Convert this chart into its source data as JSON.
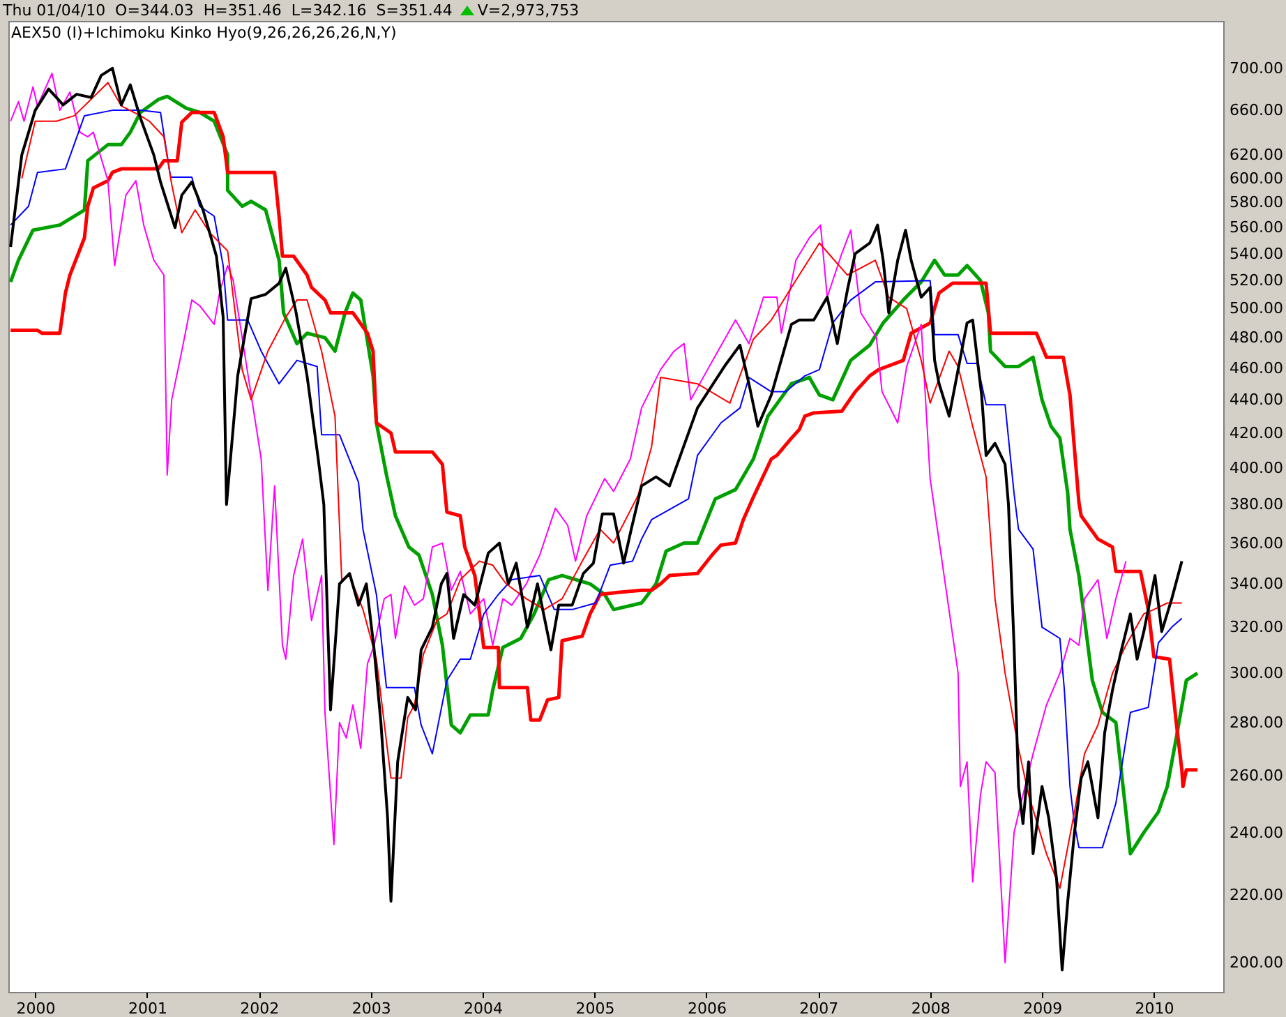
{
  "chart_data": {
    "type": "line",
    "title": "Thu 01/04/10  O=344.03  H=351.46  L=342.16  S=351.44",
    "annotations": [
      "V=2,973,753"
    ],
    "subtitle": "AEX50 (I)+Ichimoku Kinko Hyo(9,26,26,26,26,N,Y)",
    "log": "y",
    "grid": false,
    "xlim": [
      1999.76,
      2010.62
    ],
    "ylim": [
      192,
      748
    ],
    "xticks": [
      2000,
      2001,
      2002,
      2003,
      2004,
      2005,
      2006,
      2007,
      2008,
      2009,
      2010
    ],
    "yticks": [
      {
        "value": 700,
        "label": "700.00"
      },
      {
        "value": 660,
        "label": "660.00"
      },
      {
        "value": 620,
        "label": "620.00"
      },
      {
        "value": 600,
        "label": "600.00"
      },
      {
        "value": 580,
        "label": "580.00"
      },
      {
        "value": 560,
        "label": "560.00"
      },
      {
        "value": 540,
        "label": "540.00"
      },
      {
        "value": 520,
        "label": "520.00"
      },
      {
        "value": 500,
        "label": "500.00"
      },
      {
        "value": 480,
        "label": "480.00"
      },
      {
        "value": 460,
        "label": "460.00"
      },
      {
        "value": 440,
        "label": "440.00"
      },
      {
        "value": 420,
        "label": "420.00"
      },
      {
        "value": 400,
        "label": "400.00"
      },
      {
        "value": 380,
        "label": "380.00"
      },
      {
        "value": 360,
        "label": "360.00"
      },
      {
        "value": 340,
        "label": "340.00"
      },
      {
        "value": 320,
        "label": "320.00"
      },
      {
        "value": 300,
        "label": "300.00"
      },
      {
        "value": 280,
        "label": "280.00"
      },
      {
        "value": 260,
        "label": "260.00"
      },
      {
        "value": 240,
        "label": "240.00"
      },
      {
        "value": 220,
        "label": "220.00"
      },
      {
        "value": 200,
        "label": "200.00"
      }
    ],
    "series": [
      {
        "color": "#00a000",
        "x": [
          1999.78,
          1999.85,
          1999.98,
          2000.22,
          2000.44,
          2000.47,
          2000.65,
          2000.77,
          2000.85,
          2000.94,
          2001.1,
          2001.18,
          2001.35,
          2001.47,
          2001.6,
          2001.72,
          2001.72,
          2001.85,
          2001.93,
          2002.06,
          2002.18,
          2002.22,
          2002.34,
          2002.43,
          2002.59,
          2002.68,
          2002.77,
          2002.84,
          2002.91,
          2003.02,
          2003.05,
          2003.14,
          2003.22,
          2003.34,
          2003.43,
          2003.55,
          2003.64,
          2003.72,
          2003.8,
          2003.89,
          2004.05,
          2004.09,
          2004.18,
          2004.34,
          2004.46,
          2004.59,
          2004.71,
          2004.96,
          2005.09,
          2005.17,
          2005.42,
          2005.55,
          2005.64,
          2005.8,
          2005.92,
          2006.08,
          2006.26,
          2006.42,
          2006.55,
          2006.76,
          2006.92,
          2007.01,
          2007.13,
          2007.29,
          2007.46,
          2007.58,
          2007.76,
          2007.92,
          2008.04,
          2008.13,
          2008.25,
          2008.33,
          2008.45,
          2008.52,
          2008.54,
          2008.67,
          2008.79,
          2008.92,
          2009.0,
          2009.08,
          2009.16,
          2009.23,
          2009.25,
          2009.33,
          2009.41,
          2009.45,
          2009.54,
          2009.66,
          2009.75,
          2009.79,
          2009.91,
          2010.04,
          2010.12,
          2010.2,
          2010.29,
          2010.39
        ],
        "values": [
          519,
          535,
          558,
          562,
          574,
          615,
          629,
          629,
          640,
          658,
          670,
          673,
          662,
          658,
          650,
          620,
          590,
          577,
          581,
          574,
          535,
          497,
          476,
          483,
          480,
          471,
          497,
          511,
          506,
          455,
          426,
          396,
          374,
          358,
          354,
          335,
          312,
          279,
          276,
          283,
          283,
          293,
          311,
          315,
          326,
          342,
          344,
          340,
          335,
          328,
          331,
          340,
          356,
          360,
          360,
          383,
          388,
          405,
          430,
          450,
          454,
          443,
          440,
          465,
          475,
          490,
          506,
          519,
          535,
          524,
          524,
          531,
          520,
          497,
          471,
          461,
          461,
          467,
          440,
          424,
          417,
          386,
          367,
          344,
          312,
          297,
          284,
          280,
          247,
          233,
          240,
          247,
          256,
          274,
          297,
          300
        ]
      },
      {
        "color": "#ff0000",
        "x": [
          1999.78,
          2000.02,
          2000.06,
          2000.22,
          2000.27,
          2000.31,
          2000.44,
          2000.47,
          2000.52,
          2000.65,
          2000.69,
          2000.77,
          2001.1,
          2001.15,
          2001.27,
          2001.31,
          2001.4,
          2001.6,
          2001.68,
          2001.72,
          2002.14,
          2002.18,
          2002.21,
          2002.31,
          2002.43,
          2002.47,
          2002.59,
          2002.64,
          2002.84,
          2002.97,
          2003.02,
          2003.05,
          2003.18,
          2003.22,
          2003.55,
          2003.64,
          2003.68,
          2003.8,
          2003.84,
          2003.93,
          2004.01,
          2004.14,
          2004.15,
          2004.4,
          2004.43,
          2004.51,
          2004.58,
          2004.68,
          2004.71,
          2004.89,
          2004.96,
          2005.05,
          2005.21,
          2005.42,
          2005.51,
          2005.59,
          2005.67,
          2005.92,
          2006.05,
          2006.13,
          2006.26,
          2006.33,
          2006.42,
          2006.58,
          2006.63,
          2006.76,
          2006.83,
          2006.88,
          2006.96,
          2007.21,
          2007.33,
          2007.46,
          2007.54,
          2007.76,
          2007.83,
          2008.0,
          2008.08,
          2008.2,
          2008.5,
          2008.54,
          2008.95,
          2009.04,
          2009.19,
          2009.25,
          2009.33,
          2009.35,
          2009.5,
          2009.63,
          2009.66,
          2009.88,
          2009.95,
          2010.0,
          2010.14,
          2010.2,
          2010.25,
          2010.26,
          2010.29,
          2010.39
        ],
        "values": [
          485,
          485,
          483,
          483,
          511,
          524,
          552,
          577,
          592,
          598,
          605,
          608,
          608,
          615,
          615,
          649,
          658,
          658,
          636,
          605,
          605,
          569,
          538,
          538,
          524,
          515,
          506,
          497,
          497,
          483,
          471,
          426,
          420,
          409,
          409,
          402,
          376,
          374,
          358,
          344,
          311,
          311,
          294,
          294,
          281,
          281,
          289,
          290,
          314,
          316,
          326,
          335,
          336,
          337,
          337,
          340,
          344,
          345,
          354,
          359,
          360,
          372,
          384,
          405,
          407,
          417,
          422,
          430,
          432,
          433,
          445,
          455,
          459,
          465,
          483,
          490,
          511,
          518,
          518,
          483,
          483,
          467,
          467,
          443,
          381,
          374,
          362,
          358,
          346,
          346,
          328,
          307,
          306,
          280,
          262,
          256,
          262,
          262
        ]
      },
      {
        "color": "#ff00ff",
        "x": [
          1999.78,
          1999.85,
          1999.9,
          1999.98,
          2000.02,
          2000.15,
          2000.22,
          2000.31,
          2000.4,
          2000.47,
          2000.52,
          2000.65,
          2000.71,
          2000.81,
          2000.9,
          2000.97,
          2001.06,
          2001.15,
          2001.18,
          2001.22,
          2001.31,
          2001.4,
          2001.47,
          2001.6,
          2001.65,
          2001.72,
          2001.77,
          2002.02,
          2002.08,
          2002.14,
          2002.21,
          2002.24,
          2002.31,
          2002.39,
          2002.47,
          2002.56,
          2002.59,
          2002.67,
          2002.72,
          2002.78,
          2002.84,
          2002.91,
          2002.97,
          2003.03,
          2003.12,
          2003.18,
          2003.22,
          2003.3,
          2003.39,
          2003.47,
          2003.55,
          2003.64,
          2003.72,
          2003.8,
          2003.89,
          2004.01,
          2004.09,
          2004.18,
          2004.26,
          2004.39,
          2004.51,
          2004.65,
          2004.76,
          2004.83,
          2004.93,
          2005.09,
          2005.17,
          2005.32,
          2005.42,
          2005.59,
          2005.71,
          2005.8,
          2005.86,
          2006.01,
          2006.26,
          2006.38,
          2006.51,
          2006.63,
          2006.67,
          2006.8,
          2006.92,
          2007.02,
          2007.08,
          2007.21,
          2007.29,
          2007.38,
          2007.52,
          2007.57,
          2007.71,
          2007.79,
          2007.92,
          2008.0,
          2008.25,
          2008.27,
          2008.33,
          2008.38,
          2008.45,
          2008.5,
          2008.58,
          2008.67,
          2008.75,
          2008.83,
          2008.92,
          2009.04,
          2009.16,
          2009.25,
          2009.33,
          2009.38,
          2009.5,
          2009.58,
          2009.66,
          2009.75
        ],
        "values": [
          650,
          668,
          650,
          682,
          664,
          695,
          660,
          677,
          640,
          636,
          640,
          598,
          531,
          586,
          598,
          562,
          535,
          524,
          396,
          440,
          471,
          506,
          502,
          489,
          512,
          531,
          520,
          405,
          337,
          390,
          312,
          306,
          344,
          362,
          323,
          344,
          284,
          236,
          280,
          274,
          287,
          270,
          304,
          312,
          333,
          335,
          315,
          339,
          330,
          333,
          358,
          360,
          337,
          346,
          326,
          333,
          312,
          333,
          330,
          340,
          354,
          378,
          369,
          351,
          374,
          394,
          387,
          405,
          435,
          459,
          471,
          476,
          440,
          459,
          492,
          476,
          508,
          508,
          483,
          535,
          552,
          562,
          508,
          540,
          558,
          497,
          480,
          445,
          426,
          461,
          489,
          394,
          300,
          256,
          265,
          224,
          253,
          265,
          261,
          200,
          240,
          253,
          268,
          287,
          300,
          315,
          312,
          333,
          342,
          315,
          333,
          351
        ]
      },
      {
        "color": "#0000ff",
        "x": [
          1999.78,
          1999.94,
          2000.02,
          2000.27,
          2000.44,
          2000.69,
          2000.94,
          2001.12,
          2001.21,
          2001.4,
          2001.47,
          2001.6,
          2001.68,
          2001.72,
          2001.9,
          2002.02,
          2002.18,
          2002.34,
          2002.52,
          2002.56,
          2002.72,
          2002.89,
          2002.93,
          2003.05,
          2003.14,
          2003.39,
          2003.45,
          2003.55,
          2003.68,
          2003.8,
          2003.89,
          2004.01,
          2004.14,
          2004.26,
          2004.51,
          2004.64,
          2004.8,
          2005.01,
          2005.14,
          2005.34,
          2005.42,
          2005.51,
          2005.84,
          2005.92,
          2006.13,
          2006.3,
          2006.38,
          2006.58,
          2006.71,
          2006.88,
          2007.01,
          2007.13,
          2007.29,
          2007.51,
          2008.0,
          2008.04,
          2008.25,
          2008.33,
          2008.42,
          2008.5,
          2008.67,
          2008.75,
          2008.79,
          2008.92,
          2009.0,
          2009.16,
          2009.2,
          2009.25,
          2009.29,
          2009.33,
          2009.54,
          2009.66,
          2009.79,
          2009.95,
          2010.04,
          2010.16,
          2010.25
        ],
        "values": [
          562,
          577,
          605,
          608,
          655,
          660,
          660,
          658,
          601,
          601,
          577,
          569,
          531,
          492,
          492,
          471,
          450,
          465,
          461,
          419,
          419,
          392,
          367,
          335,
          294,
          294,
          279,
          268,
          297,
          306,
          306,
          326,
          335,
          342,
          344,
          328,
          328,
          331,
          349,
          351,
          362,
          372,
          383,
          407,
          426,
          435,
          454,
          445,
          445,
          455,
          459,
          490,
          506,
          519,
          520,
          482,
          482,
          463,
          463,
          437,
          437,
          386,
          367,
          357,
          320,
          315,
          293,
          256,
          243,
          235,
          235,
          250,
          284,
          286,
          313,
          320,
          324
        ]
      },
      {
        "color": "#ff0000",
        "x": [
          1999.88,
          2000.0,
          2000.19,
          2000.35,
          2000.65,
          2000.77,
          2000.94,
          2001.02,
          2001.15,
          2001.22,
          2001.31,
          2001.43,
          2001.56,
          2001.72,
          2001.85,
          2001.93,
          2002.08,
          2002.24,
          2002.34,
          2002.43,
          2002.56,
          2002.68,
          2002.74,
          2002.81,
          2002.93,
          2003.05,
          2003.18,
          2003.27,
          2003.33,
          2003.39,
          2003.47,
          2003.59,
          2003.68,
          2003.8,
          2003.97,
          2004.09,
          2004.21,
          2004.39,
          2004.55,
          2004.71,
          2004.89,
          2005.05,
          2005.17,
          2005.39,
          2005.51,
          2005.59,
          2005.92,
          2006.21,
          2006.42,
          2006.58,
          2006.76,
          2007.01,
          2007.26,
          2007.51,
          2007.63,
          2007.79,
          2007.92,
          2008.0,
          2008.17,
          2008.25,
          2008.38,
          2008.5,
          2008.58,
          2008.67,
          2008.79,
          2008.88,
          2009.04,
          2009.16,
          2009.29,
          2009.38,
          2009.5,
          2009.63,
          2009.75,
          2009.91,
          2010.0,
          2010.12,
          2010.25
        ],
        "values": [
          600,
          650,
          650,
          655,
          686,
          664,
          655,
          650,
          636,
          595,
          556,
          574,
          556,
          542,
          459,
          440,
          471,
          494,
          506,
          506,
          471,
          430,
          342,
          344,
          328,
          306,
          259,
          259,
          282,
          287,
          308,
          323,
          326,
          342,
          351,
          349,
          340,
          333,
          328,
          333,
          351,
          367,
          360,
          385,
          412,
          454,
          450,
          438,
          479,
          492,
          515,
          548,
          524,
          535,
          508,
          500,
          465,
          438,
          471,
          461,
          424,
          395,
          333,
          300,
          270,
          253,
          233,
          222,
          247,
          268,
          279,
          300,
          312,
          326,
          328,
          331,
          331
        ]
      },
      {
        "color": "#000000",
        "x": [
          1999.78,
          1999.88,
          2000.0,
          2000.12,
          2000.25,
          2000.37,
          2000.5,
          2000.59,
          2000.69,
          2000.77,
          2000.85,
          2000.94,
          2001.06,
          2001.12,
          2001.25,
          2001.31,
          2001.4,
          2001.5,
          2001.62,
          2001.68,
          2001.71,
          2001.81,
          2001.93,
          2002.06,
          2002.18,
          2002.24,
          2002.33,
          2002.43,
          2002.53,
          2002.58,
          2002.64,
          2002.72,
          2002.81,
          2002.89,
          2002.96,
          2003.03,
          2003.09,
          2003.15,
          2003.18,
          2003.24,
          2003.33,
          2003.4,
          2003.45,
          2003.55,
          2003.63,
          2003.68,
          2003.74,
          2003.83,
          2003.93,
          2004.05,
          2004.15,
          2004.23,
          2004.3,
          2004.4,
          2004.49,
          2004.61,
          2004.68,
          2004.8,
          2004.9,
          2004.99,
          2005.07,
          2005.17,
          2005.26,
          2005.32,
          2005.42,
          2005.55,
          2005.67,
          2005.92,
          2006.17,
          2006.3,
          2006.38,
          2006.46,
          2006.58,
          2006.76,
          2006.83,
          2006.96,
          2007.08,
          2007.17,
          2007.26,
          2007.33,
          2007.46,
          2007.53,
          2007.58,
          2007.63,
          2007.71,
          2007.78,
          2007.83,
          2007.92,
          2008.0,
          2008.04,
          2008.08,
          2008.17,
          2008.25,
          2008.33,
          2008.38,
          2008.46,
          2008.5,
          2008.58,
          2008.67,
          2008.7,
          2008.75,
          2008.79,
          2008.83,
          2008.88,
          2008.92,
          2009.0,
          2009.06,
          2009.13,
          2009.18,
          2009.23,
          2009.29,
          2009.35,
          2009.41,
          2009.5,
          2009.56,
          2009.63,
          2009.7,
          2009.79,
          2009.85,
          2009.91,
          2010.01,
          2010.07,
          2010.16,
          2010.25
        ],
        "values": [
          545,
          620,
          660,
          680,
          665,
          675,
          672,
          693,
          700,
          665,
          684,
          653,
          620,
          597,
          560,
          586,
          597,
          574,
          538,
          494,
          380,
          455,
          507,
          510,
          518,
          529,
          498,
          455,
          405,
          380,
          285,
          340,
          345,
          330,
          340,
          310,
          280,
          245,
          218,
          265,
          290,
          285,
          310,
          320,
          340,
          345,
          315,
          335,
          330,
          355,
          360,
          340,
          350,
          320,
          340,
          310,
          330,
          330,
          345,
          350,
          375,
          375,
          350,
          365,
          390,
          395,
          390,
          435,
          462,
          475,
          450,
          424,
          443,
          489,
          492,
          492,
          508,
          476,
          513,
          540,
          548,
          562,
          535,
          497,
          535,
          558,
          535,
          508,
          515,
          465,
          450,
          430,
          459,
          490,
          492,
          443,
          407,
          414,
          402,
          380,
          312,
          256,
          243,
          265,
          233,
          256,
          245,
          225,
          198,
          218,
          240,
          259,
          265,
          245,
          276,
          293,
          308,
          326,
          306,
          318,
          344,
          318,
          333,
          351
        ]
      }
    ]
  }
}
